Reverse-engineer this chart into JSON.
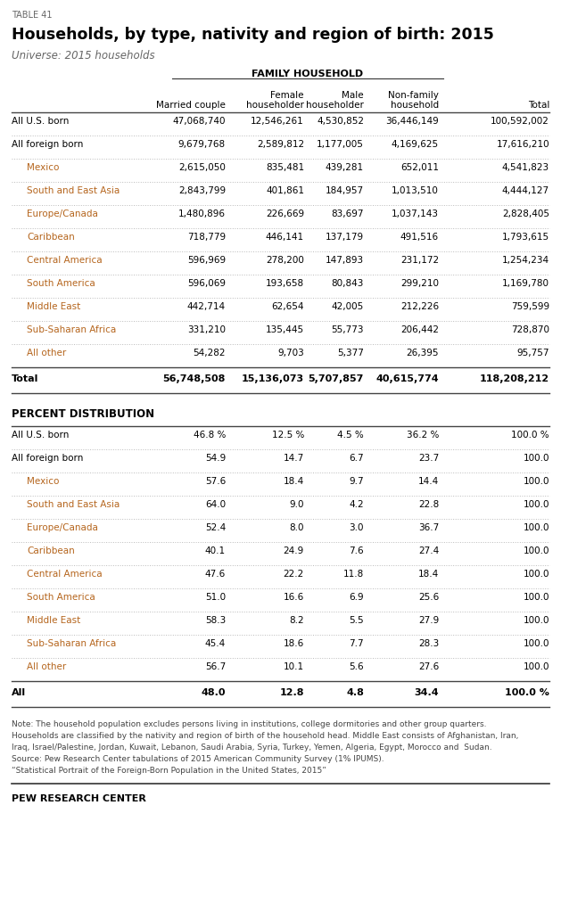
{
  "table_label": "TABLE 41",
  "title": "Households, by type, nativity and region of birth: 2015",
  "universe": "Universe: 2015 households",
  "family_household_label": "FAMILY HOUSEHOLD",
  "col_headers": [
    "",
    "Married couple",
    "Female\nhouseholder",
    "Male\nhouseholder",
    "Non-family\nhousehold",
    "Total"
  ],
  "count_rows": [
    {
      "label": "All U.S. born",
      "vals": [
        "47,068,740",
        "12,546,261",
        "4,530,852",
        "36,446,149",
        "100,592,002"
      ],
      "style": "normal"
    },
    {
      "label": "All foreign born",
      "vals": [
        "9,679,768",
        "2,589,812",
        "1,177,005",
        "4,169,625",
        "17,616,210"
      ],
      "style": "normal"
    },
    {
      "label": "Mexico",
      "vals": [
        "2,615,050",
        "835,481",
        "439,281",
        "652,011",
        "4,541,823"
      ],
      "style": "indent"
    },
    {
      "label": "South and East Asia",
      "vals": [
        "2,843,799",
        "401,861",
        "184,957",
        "1,013,510",
        "4,444,127"
      ],
      "style": "indent"
    },
    {
      "label": "Europe/Canada",
      "vals": [
        "1,480,896",
        "226,669",
        "83,697",
        "1,037,143",
        "2,828,405"
      ],
      "style": "indent"
    },
    {
      "label": "Caribbean",
      "vals": [
        "718,779",
        "446,141",
        "137,179",
        "491,516",
        "1,793,615"
      ],
      "style": "indent"
    },
    {
      "label": "Central America",
      "vals": [
        "596,969",
        "278,200",
        "147,893",
        "231,172",
        "1,254,234"
      ],
      "style": "indent"
    },
    {
      "label": "South America",
      "vals": [
        "596,069",
        "193,658",
        "80,843",
        "299,210",
        "1,169,780"
      ],
      "style": "indent"
    },
    {
      "label": "Middle East",
      "vals": [
        "442,714",
        "62,654",
        "42,005",
        "212,226",
        "759,599"
      ],
      "style": "indent"
    },
    {
      "label": "Sub-Saharan Africa",
      "vals": [
        "331,210",
        "135,445",
        "55,773",
        "206,442",
        "728,870"
      ],
      "style": "indent"
    },
    {
      "label": "All other",
      "vals": [
        "54,282",
        "9,703",
        "5,377",
        "26,395",
        "95,757"
      ],
      "style": "indent"
    }
  ],
  "count_total_row": [
    "Total",
    "56,748,508",
    "15,136,073",
    "5,707,857",
    "40,615,774",
    "118,208,212"
  ],
  "percent_section_label": "PERCENT DISTRIBUTION",
  "percent_rows": [
    {
      "label": "All U.S. born",
      "vals": [
        "46.8 %",
        "12.5 %",
        "4.5 %",
        "36.2 %",
        "100.0 %"
      ],
      "style": "normal"
    },
    {
      "label": "All foreign born",
      "vals": [
        "54.9",
        "14.7",
        "6.7",
        "23.7",
        "100.0"
      ],
      "style": "normal"
    },
    {
      "label": "Mexico",
      "vals": [
        "57.6",
        "18.4",
        "9.7",
        "14.4",
        "100.0"
      ],
      "style": "indent"
    },
    {
      "label": "South and East Asia",
      "vals": [
        "64.0",
        "9.0",
        "4.2",
        "22.8",
        "100.0"
      ],
      "style": "indent"
    },
    {
      "label": "Europe/Canada",
      "vals": [
        "52.4",
        "8.0",
        "3.0",
        "36.7",
        "100.0"
      ],
      "style": "indent"
    },
    {
      "label": "Caribbean",
      "vals": [
        "40.1",
        "24.9",
        "7.6",
        "27.4",
        "100.0"
      ],
      "style": "indent"
    },
    {
      "label": "Central America",
      "vals": [
        "47.6",
        "22.2",
        "11.8",
        "18.4",
        "100.0"
      ],
      "style": "indent"
    },
    {
      "label": "South America",
      "vals": [
        "51.0",
        "16.6",
        "6.9",
        "25.6",
        "100.0"
      ],
      "style": "indent"
    },
    {
      "label": "Middle East",
      "vals": [
        "58.3",
        "8.2",
        "5.5",
        "27.9",
        "100.0"
      ],
      "style": "indent"
    },
    {
      "label": "Sub-Saharan Africa",
      "vals": [
        "45.4",
        "18.6",
        "7.7",
        "28.3",
        "100.0"
      ],
      "style": "indent"
    },
    {
      "label": "All other",
      "vals": [
        "56.7",
        "10.1",
        "5.6",
        "27.6",
        "100.0"
      ],
      "style": "indent"
    }
  ],
  "percent_total_row": [
    "All",
    "48.0",
    "12.8",
    "4.8",
    "34.4",
    "100.0 %"
  ],
  "note_lines": [
    "Note: The household population excludes persons living in institutions, college dormitories and other group quarters.",
    "Households are classified by the nativity and region of birth of the household head. Middle East consists of Afghanistan, Iran,",
    "Iraq, Israel/Palestine, Jordan, Kuwait, Lebanon, Saudi Arabia, Syria, Turkey, Yemen, Algeria, Egypt, Morocco and  Sudan.",
    "Source: Pew Research Center tabulations of 2015 American Community Survey (1% IPUMS).",
    "“Statistical Portrait of the Foreign-Born Population in the United States, 2015”"
  ],
  "footer": "PEW RESEARCH CENTER",
  "bg_color": "#ffffff",
  "normal_color": "#000000",
  "indent_color": "#b5651d",
  "bold_color": "#000000",
  "dotted_line_color": "#bbbbbb",
  "solid_line_color": "#555555",
  "note_color": "#444444",
  "table_label_color": "#666666",
  "universe_color": "#666666"
}
